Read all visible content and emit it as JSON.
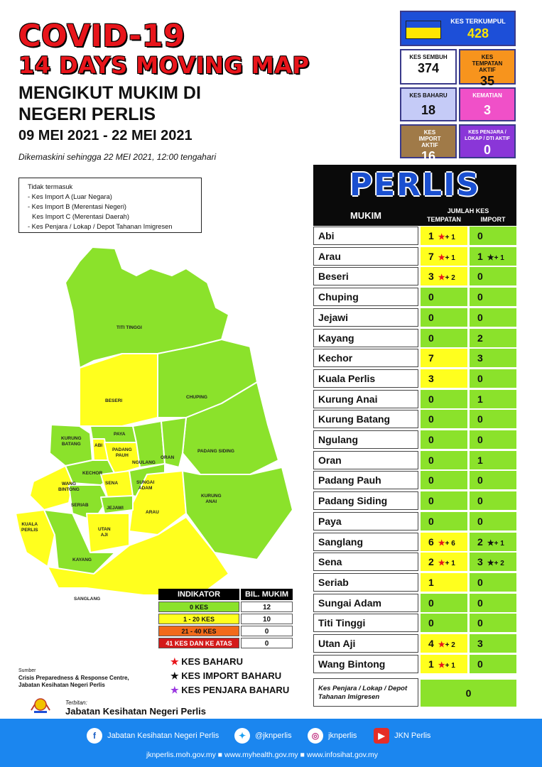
{
  "title": {
    "line1": "COVID-19",
    "line2": "14 DAYS MOVING MAP",
    "line3a": "MENGIKUT MUKIM DI",
    "line3b": "NEGERI PERLIS",
    "dates": "09 MEI 2021 - 22 MEI 2021",
    "updated": "Dikemaskini sehingga 22 MEI 2021, 12:00 tengahari"
  },
  "note": [
    "Tidak termasuk",
    "- Kes Import A (Luar Negara)",
    "- Kes Import B (Merentasi Negeri)",
    "  Kes Import C (Merentasi Daerah)",
    "- Kes Penjara / Lokap / Depot Tahanan Imigresen"
  ],
  "stats": {
    "terkumpul": {
      "label": "KES TERKUMPUL",
      "value": "428",
      "color": "#1d4fd8"
    },
    "sembuh": {
      "label": "KES SEMBUH",
      "value": "374",
      "color": "#ffffff"
    },
    "tempatan_aktif": {
      "label": "KES TEMPATAN AKTIF",
      "value": "35",
      "color": "#f7941d"
    },
    "baharu": {
      "label": "KES BAHARU",
      "value": "18",
      "color": "#c5cbf7"
    },
    "kematian": {
      "label": "KEMATIAN",
      "value": "3",
      "color": "#f050c8"
    },
    "import_aktif": {
      "label": "KES IMPORT AKTIF",
      "value": "16",
      "color": "#a07a48"
    },
    "penjara_aktif": {
      "label": "KES PENJARA / LOKAP / DTI AKTIF",
      "value": "0",
      "color": "#8a36d8"
    }
  },
  "table": {
    "state": "PERLIS",
    "col_mukim": "MUKIM",
    "col_jumlah": "JUMLAH KES",
    "col_tempatan": "TEMPATAN",
    "col_import": "IMPORT",
    "rows": [
      {
        "mukim": "Abi",
        "tempatan": "1",
        "t_new": "+ 1",
        "t_star": "red",
        "import": "0",
        "i_new": "",
        "i_star": ""
      },
      {
        "mukim": "Arau",
        "tempatan": "7",
        "t_new": "+ 1",
        "t_star": "red",
        "import": "1",
        "i_new": "+ 1",
        "i_star": "black"
      },
      {
        "mukim": "Beseri",
        "tempatan": "3",
        "t_new": "+ 2",
        "t_star": "red",
        "import": "0",
        "i_new": "",
        "i_star": ""
      },
      {
        "mukim": "Chuping",
        "tempatan": "0",
        "t_new": "",
        "t_star": "",
        "import": "0",
        "i_new": "",
        "i_star": ""
      },
      {
        "mukim": "Jejawi",
        "tempatan": "0",
        "t_new": "",
        "t_star": "",
        "import": "0",
        "i_new": "",
        "i_star": ""
      },
      {
        "mukim": "Kayang",
        "tempatan": "0",
        "t_new": "",
        "t_star": "",
        "import": "2",
        "i_new": "",
        "i_star": ""
      },
      {
        "mukim": "Kechor",
        "tempatan": "7",
        "t_new": "",
        "t_star": "",
        "import": "3",
        "i_new": "",
        "i_star": ""
      },
      {
        "mukim": "Kuala Perlis",
        "tempatan": "3",
        "t_new": "",
        "t_star": "",
        "import": "0",
        "i_new": "",
        "i_star": ""
      },
      {
        "mukim": "Kurung Anai",
        "tempatan": "0",
        "t_new": "",
        "t_star": "",
        "import": "1",
        "i_new": "",
        "i_star": ""
      },
      {
        "mukim": "Kurung Batang",
        "tempatan": "0",
        "t_new": "",
        "t_star": "",
        "import": "0",
        "i_new": "",
        "i_star": ""
      },
      {
        "mukim": "Ngulang",
        "tempatan": "0",
        "t_new": "",
        "t_star": "",
        "import": "0",
        "i_new": "",
        "i_star": ""
      },
      {
        "mukim": "Oran",
        "tempatan": "0",
        "t_new": "",
        "t_star": "",
        "import": "1",
        "i_new": "",
        "i_star": ""
      },
      {
        "mukim": "Padang Pauh",
        "tempatan": "0",
        "t_new": "",
        "t_star": "",
        "import": "0",
        "i_new": "",
        "i_star": ""
      },
      {
        "mukim": "Padang Siding",
        "tempatan": "0",
        "t_new": "",
        "t_star": "",
        "import": "0",
        "i_new": "",
        "i_star": ""
      },
      {
        "mukim": "Paya",
        "tempatan": "0",
        "t_new": "",
        "t_star": "",
        "import": "0",
        "i_new": "",
        "i_star": ""
      },
      {
        "mukim": "Sanglang",
        "tempatan": "6",
        "t_new": "+ 6",
        "t_star": "red",
        "import": "2",
        "i_new": "+ 1",
        "i_star": "black"
      },
      {
        "mukim": "Sena",
        "tempatan": "2",
        "t_new": "+ 1",
        "t_star": "red",
        "import": "3",
        "i_new": "+ 2",
        "i_star": "black"
      },
      {
        "mukim": "Seriab",
        "tempatan": "1",
        "t_new": "",
        "t_star": "",
        "import": "0",
        "i_new": "",
        "i_star": ""
      },
      {
        "mukim": "Sungai Adam",
        "tempatan": "0",
        "t_new": "",
        "t_star": "",
        "import": "0",
        "i_new": "",
        "i_star": ""
      },
      {
        "mukim": "Titi Tinggi",
        "tempatan": "0",
        "t_new": "",
        "t_star": "",
        "import": "0",
        "i_new": "",
        "i_star": ""
      },
      {
        "mukim": "Utan Aji",
        "tempatan": "4",
        "t_new": "+ 2",
        "t_star": "red",
        "import": "3",
        "i_new": "",
        "i_star": ""
      },
      {
        "mukim": "Wang Bintong",
        "tempatan": "1",
        "t_new": "+ 1",
        "t_star": "red",
        "import": "0",
        "i_new": "",
        "i_star": ""
      }
    ],
    "penjara_label": "Kes Penjara / Lokap / Depot Tahanan Imigresen",
    "penjara_value": "0"
  },
  "legend": {
    "indikator": "INDIKATOR",
    "bil": "BIL. MUKIM",
    "rows": [
      {
        "label": "0 KES",
        "count": "12",
        "color": "#8be22b",
        "text": "#111"
      },
      {
        "label": "1 - 20 KES",
        "count": "10",
        "color": "#ffff1e",
        "text": "#111"
      },
      {
        "label": "21 - 40 KES",
        "count": "0",
        "color": "#f26a1b",
        "text": "#111"
      },
      {
        "label": "41 KES DAN KE ATAS",
        "count": "0",
        "color": "#d41919",
        "text": "#fff"
      }
    ],
    "keys": [
      {
        "label": "KES BAHARU",
        "color": "#e8151b"
      },
      {
        "label": "KES IMPORT BAHARU",
        "color": "#111111"
      },
      {
        "label": "KES PENJARA BAHARU",
        "color": "#9b38e0"
      }
    ]
  },
  "source": {
    "label": "Sumber",
    "line1": "Crisis Preparedness & Response Centre,",
    "line2": "Jabatan Kesihatan Negeri Perlis"
  },
  "publisher": {
    "label": "Terbitan:",
    "name": "Jabatan Kesihatan Negeri Perlis"
  },
  "map_labels": {
    "titi_tinggi": "TITI TINGGI",
    "beseri": "BESERI",
    "chuping": "CHUPING",
    "kurung_batang": "KURUNG\nBATANG",
    "paya": "PAYA",
    "abi": "ABI",
    "padang_pauh": "PADANG\nPAUH",
    "ngulang": "NGULANG",
    "oran": "ORAN",
    "padang_siding": "PADANG SIDING",
    "kechor": "KECHOR",
    "wang_bintong": "WANG\nBINTONG",
    "sena": "SENA",
    "sungai_adam": "SUNGAI\nADAM",
    "kurung_anai": "KURUNG\nANAI",
    "seriab": "SERIAB",
    "jejawi": "JEJAWI",
    "arau": "ARAU",
    "kuala_perlis": "KUALA\nPERLIS",
    "utan_aji": "UTAN\nAJI",
    "kayang": "KAYANG",
    "sanglang": "SANGLANG"
  },
  "map_colors": {
    "zero": "#8be22b",
    "low": "#ffff1e",
    "border": "#ffffff"
  },
  "footer": {
    "facebook": "Jabatan Kesihatan Negeri Perlis",
    "twitter": "@jknperlis",
    "instagram": "jknperlis",
    "youtube": "JKN Perlis",
    "links": "jknperlis.moh.gov.my ■ www.myhealth.gov.my ■ www.infosihat.gov.my"
  }
}
